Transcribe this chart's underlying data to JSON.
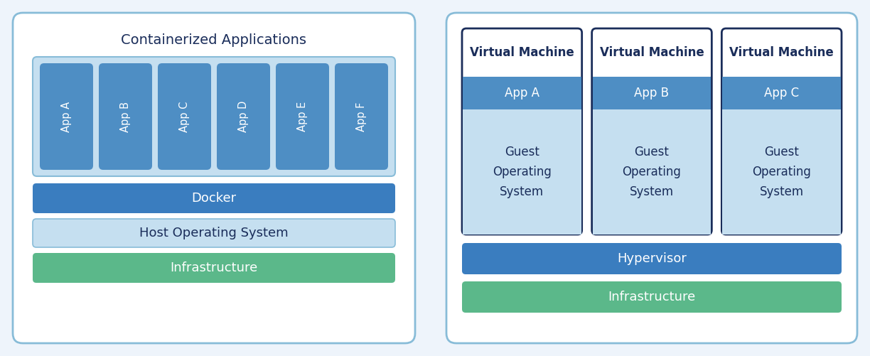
{
  "bg_color": "#eef4fb",
  "panel_bg": "#ffffff",
  "panel_border": "#88bcd8",
  "blue_dark": "#3a7dbf",
  "blue_medium": "#4e8ec4",
  "blue_light": "#c5dff0",
  "green": "#5bb88a",
  "white": "#ffffff",
  "dark_text": "#1a2d5a",
  "white_text": "#ffffff",
  "light_text": "#334466",
  "left_title": "Containerized Applications",
  "left_apps": [
    "App A",
    "App B",
    "App C",
    "App D",
    "App E",
    "App F"
  ],
  "left_docker": "Docker",
  "left_host_os": "Host Operating System",
  "left_infra": "Infrastructure",
  "right_vm_title": "Virtual Machine",
  "right_apps": [
    "App A",
    "App B",
    "App C"
  ],
  "right_guest_os": "Guest\nOperating\nSystem",
  "right_hypervisor": "Hypervisor",
  "right_infra": "Infrastructure",
  "fig_w": 12.24,
  "fig_h": 5.01,
  "dpi": 100
}
